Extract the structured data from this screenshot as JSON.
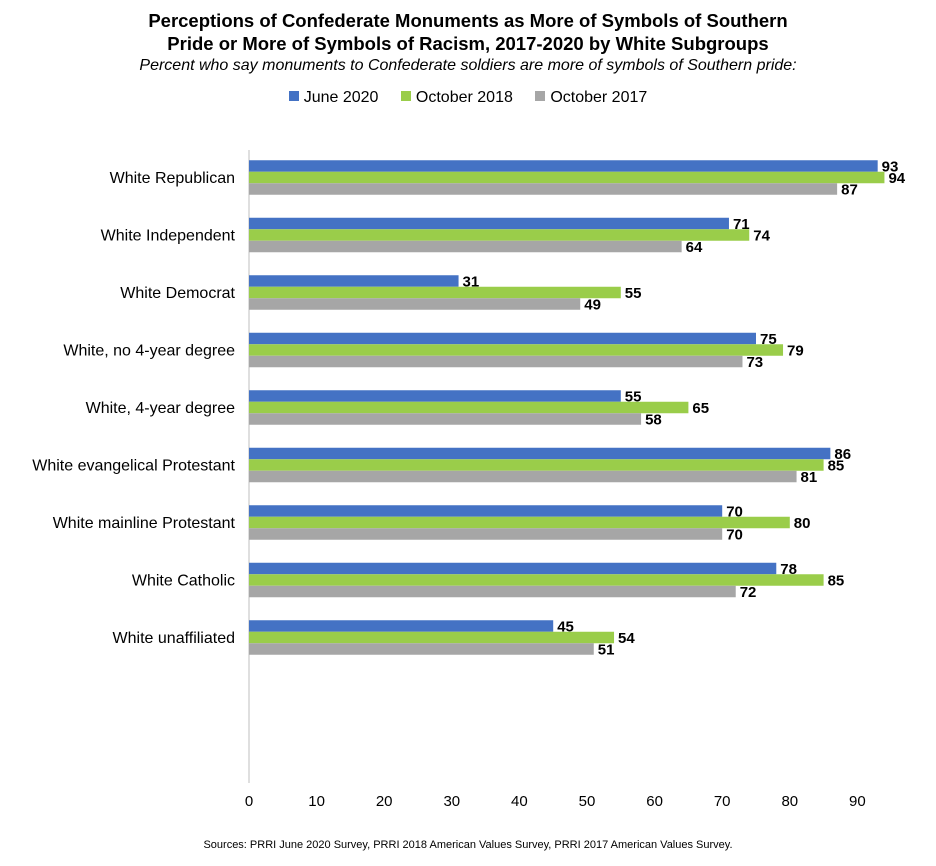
{
  "title_line1": "Perceptions of Confederate Monuments as More of Symbols of Southern",
  "title_line2": "Pride or More of Symbols of Racism, 2017-2020 by White Subgroups",
  "subtitle": "Percent who say monuments to Confederate soldiers are more of symbols of Southern pride:",
  "source": "Sources: PRRI June 2020 Survey, PRRI 2018 American Values Survey, PRRI 2017 American Values Survey.",
  "chart_data": {
    "type": "bar",
    "orientation": "horizontal",
    "categories": [
      "White Republican",
      "White Independent",
      "White Democrat",
      "White, no 4-year degree",
      "White, 4-year degree",
      "White evangelical Protestant",
      "White mainline Protestant",
      "White Catholic",
      "White unaffiliated"
    ],
    "groups": [
      [
        0,
        1,
        2
      ],
      [
        3,
        4
      ],
      [
        5,
        6,
        7,
        8
      ]
    ],
    "series": [
      {
        "name": "June 2020",
        "color": "#4472C4",
        "values": [
          93,
          71,
          31,
          75,
          55,
          86,
          70,
          78,
          45
        ]
      },
      {
        "name": "October 2018",
        "color": "#9ACD4A",
        "values": [
          94,
          74,
          55,
          79,
          65,
          85,
          80,
          85,
          54
        ]
      },
      {
        "name": "October 2017",
        "color": "#A6A6A6",
        "values": [
          87,
          64,
          49,
          73,
          58,
          81,
          70,
          72,
          51
        ]
      }
    ],
    "xlim": [
      0,
      90
    ],
    "xticks": [
      "0",
      "10",
      "20",
      "30",
      "40",
      "50",
      "60",
      "70",
      "80",
      "90"
    ],
    "legend_position": "top",
    "grid": false
  }
}
